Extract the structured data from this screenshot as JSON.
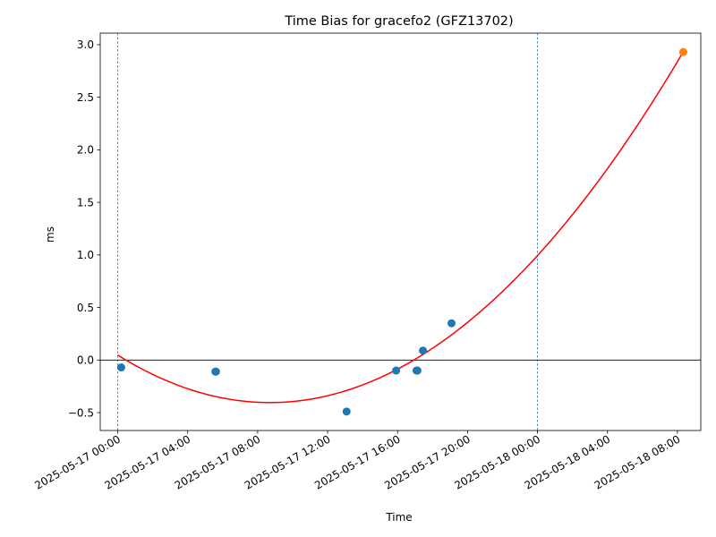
{
  "chart_data": {
    "type": "scatter",
    "title": "Time Bias for gracefo2 (GFZ13702)",
    "xlabel": "Time",
    "ylabel": "ms",
    "x_ticks": [
      "2025-05-17 00:00",
      "2025-05-17 04:00",
      "2025-05-17 08:00",
      "2025-05-17 12:00",
      "2025-05-17 16:00",
      "2025-05-17 20:00",
      "2025-05-18 00:00",
      "2025-05-18 04:00",
      "2025-05-18 08:00"
    ],
    "y_ticks": [
      "−0.5",
      "0.0",
      "0.5",
      "1.0",
      "1.5",
      "2.0",
      "2.5",
      "3.0"
    ],
    "xlim": [
      "2025-05-16 23:00",
      "2025-05-18 09:20"
    ],
    "ylim": [
      -0.67,
      3.11
    ],
    "grid": false,
    "reference_lines": {
      "horizontal_y": 0.0,
      "vertical_x": [
        "2025-05-17 00:00",
        "2025-05-18 00:00"
      ]
    },
    "series": [
      {
        "color": "#1f77b4",
        "points": [
          {
            "x": "2025-05-17 00:12",
            "y": -0.07
          },
          {
            "x": "2025-05-17 05:35",
            "y": -0.11
          },
          {
            "x": "2025-05-17 05:37",
            "y": -0.11
          },
          {
            "x": "2025-05-17 13:05",
            "y": -0.49
          },
          {
            "x": "2025-05-17 15:55",
            "y": -0.1
          },
          {
            "x": "2025-05-17 17:05",
            "y": -0.1
          },
          {
            "x": "2025-05-17 17:08",
            "y": -0.1
          },
          {
            "x": "2025-05-17 17:27",
            "y": 0.09
          },
          {
            "x": "2025-05-17 19:05",
            "y": 0.35
          }
        ]
      },
      {
        "color": "#ff7f0e",
        "points": [
          {
            "x": "2025-05-18 08:20",
            "y": 2.93
          }
        ]
      }
    ],
    "fit_curve": {
      "type": "quadratic",
      "color": "#ff0000",
      "x_range": [
        "2025-05-17 00:00",
        "2025-05-18 08:20"
      ],
      "points": [
        {
          "x": "2025-05-17 00:00",
          "y": 0.05
        },
        {
          "x": "2025-05-17 08:40",
          "y": -0.41
        },
        {
          "x": "2025-05-18 00:00",
          "y": 1.0
        },
        {
          "x": "2025-05-18 08:20",
          "y": 2.93
        }
      ]
    }
  }
}
